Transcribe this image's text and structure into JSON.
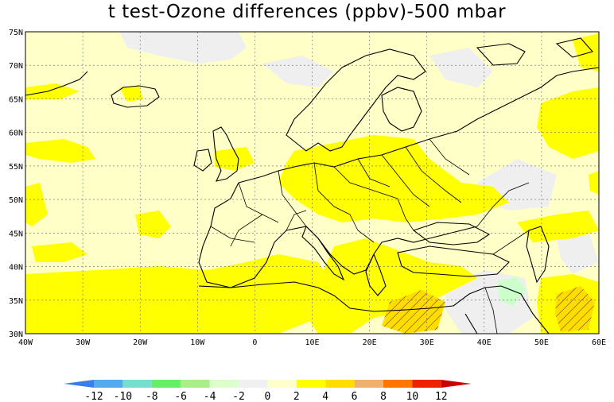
{
  "title": "t test-Ozone differences (ppbv)-500 mbar",
  "lat_labels": [
    "75N",
    "70N",
    "65N",
    "60N",
    "55N",
    "50N",
    "45N",
    "40N",
    "35N",
    "30N"
  ],
  "lon_labels": [
    "40W",
    "30W",
    "20W",
    "10W",
    "0",
    "10E",
    "20E",
    "30E",
    "40E",
    "50E",
    "60E"
  ],
  "lon_range": [
    -40,
    60
  ],
  "lat_range": [
    30,
    75
  ],
  "colorbar": {
    "labels": [
      "-12",
      "-10",
      "-8",
      "-6",
      "-4",
      "-2",
      "0",
      "2",
      "4",
      "6",
      "8",
      "10",
      "12"
    ],
    "colors": [
      "#3a7df0",
      "#55aaee",
      "#77ddcc",
      "#66ee66",
      "#aaee88",
      "#ddffcc",
      "#f0f0f0",
      "#ffffcc",
      "#ffff00",
      "#ffdd00",
      "#f0b070",
      "#ff7700",
      "#ee2200",
      "#cc0000"
    ]
  },
  "colors": {
    "background": "#ffffc8",
    "positive_2_4": "#ffff00",
    "near_zero": "#f0f0f0",
    "negative": "#ccffcc",
    "hatch": "#ffdd00"
  }
}
